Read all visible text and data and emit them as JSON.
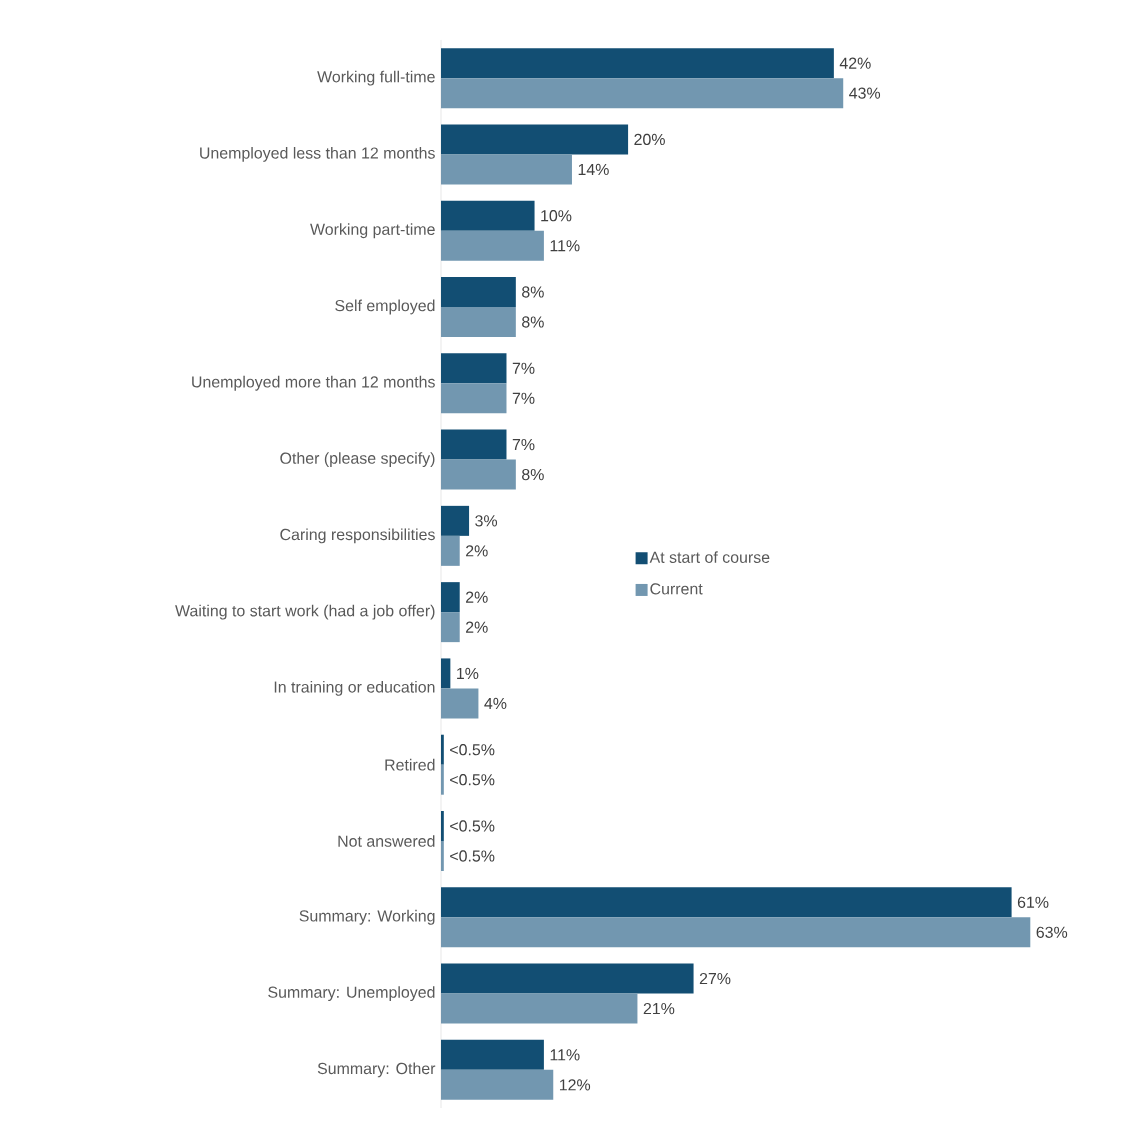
{
  "chart_data": {
    "type": "bar",
    "orientation": "horizontal",
    "legend": "center",
    "categories": [
      "Working full-time",
      "Unemployed less than 12 months",
      "Working part-time",
      "Self employed",
      "Unemployed more than 12 months",
      "Other (please specify)",
      "Caring responsibilities",
      "Waiting to start work (had a job offer)",
      "In training or education",
      "Retired",
      "Not answered",
      "Summary: Working",
      "Summary: Unemployed",
      "Summary: Other"
    ],
    "series": [
      {
        "name": "At start of course",
        "color": "#124e73",
        "values": [
          42,
          20,
          10,
          8,
          7,
          7,
          3,
          2,
          1,
          0.3,
          0.3,
          61,
          27,
          11
        ],
        "value_labels": [
          "42%",
          "20%",
          "10%",
          "8%",
          "7%",
          "7%",
          "3%",
          "2%",
          "1%",
          "<0.5%",
          "<0.5%",
          "61%",
          "27%",
          "11%"
        ]
      },
      {
        "name": "Current",
        "color": "#7297b0",
        "values": [
          43,
          14,
          11,
          8,
          7,
          8,
          2,
          2,
          4,
          0.3,
          0.3,
          63,
          21,
          12
        ],
        "value_labels": [
          "43%",
          "14%",
          "11%",
          "8%",
          "7%",
          "8%",
          "2%",
          "2%",
          "4%",
          "<0.5%",
          "<0.5%",
          "63%",
          "21%",
          "12%"
        ]
      }
    ]
  }
}
